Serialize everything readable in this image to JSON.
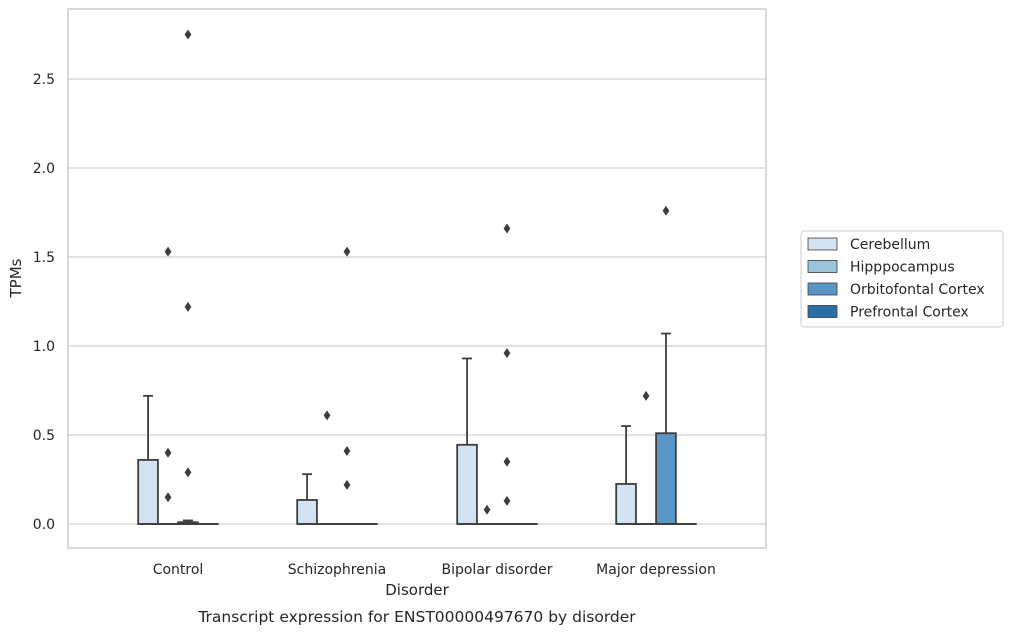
{
  "caption": "Transcript expression for ENST00000497670 by disorder",
  "chart_data": {
    "type": "box",
    "xlabel": "Disorder",
    "ylabel": "TPMs",
    "ylim": [
      -0.13,
      2.9
    ],
    "yticks": [
      0.0,
      0.5,
      1.0,
      1.5,
      2.0,
      2.5
    ],
    "ytick_labels": [
      "0.0",
      "0.5",
      "1.0",
      "1.5",
      "2.0",
      "2.5"
    ],
    "grid": "horizontal",
    "legend_position": "right",
    "categories": [
      "Control",
      "Schizophrenia",
      "Bipolar disorder",
      "Major depression"
    ],
    "series": [
      {
        "name": "Cerebellum",
        "color": "#d4e3f1",
        "boxes": [
          {
            "q1": 0.0,
            "median": 0.0,
            "q3": 0.36,
            "whisker_low": 0.0,
            "whisker_high": 0.72,
            "outliers": []
          },
          {
            "q1": 0.0,
            "median": 0.0,
            "q3": 0.135,
            "whisker_low": 0.0,
            "whisker_high": 0.28,
            "outliers": []
          },
          {
            "q1": 0.0,
            "median": 0.0,
            "q3": 0.445,
            "whisker_low": 0.0,
            "whisker_high": 0.93,
            "outliers": []
          },
          {
            "q1": 0.0,
            "median": 0.0,
            "q3": 0.225,
            "whisker_low": 0.0,
            "whisker_high": 0.55,
            "outliers": []
          }
        ]
      },
      {
        "name": "Hipppocampus",
        "color": "#9ac3dc",
        "boxes": [
          {
            "q1": 0.0,
            "median": 0.0,
            "q3": 0.0,
            "whisker_low": 0.0,
            "whisker_high": 0.0,
            "outliers": [
              0.15,
              0.4,
              1.53
            ]
          },
          {
            "q1": 0.0,
            "median": 0.0,
            "q3": 0.0,
            "whisker_low": 0.0,
            "whisker_high": 0.0,
            "outliers": [
              0.61
            ]
          },
          {
            "q1": 0.0,
            "median": 0.0,
            "q3": 0.0,
            "whisker_low": 0.0,
            "whisker_high": 0.0,
            "outliers": [
              0.08
            ]
          },
          {
            "q1": 0.0,
            "median": 0.0,
            "q3": 0.0,
            "whisker_low": 0.0,
            "whisker_high": 0.0,
            "outliers": [
              0.72
            ]
          }
        ]
      },
      {
        "name": "Orbitofontal Cortex",
        "color": "#5996c4",
        "boxes": [
          {
            "q1": 0.0,
            "median": 0.0,
            "q3": 0.01,
            "whisker_low": 0.0,
            "whisker_high": 0.02,
            "outliers": [
              0.29,
              1.22,
              2.75
            ]
          },
          {
            "q1": 0.0,
            "median": 0.0,
            "q3": 0.0,
            "whisker_low": 0.0,
            "whisker_high": 0.0,
            "outliers": [
              0.22,
              0.41,
              1.53
            ]
          },
          {
            "q1": 0.0,
            "median": 0.0,
            "q3": 0.0,
            "whisker_low": 0.0,
            "whisker_high": 0.0,
            "outliers": [
              0.13,
              0.35,
              0.96,
              1.66
            ]
          },
          {
            "q1": 0.0,
            "median": 0.0,
            "q3": 0.51,
            "whisker_low": 0.0,
            "whisker_high": 1.07,
            "outliers": [
              1.76
            ]
          }
        ]
      },
      {
        "name": "Prefrontal Cortex",
        "color": "#2b6ea8",
        "boxes": [
          {
            "q1": 0.0,
            "median": 0.0,
            "q3": 0.0,
            "whisker_low": 0.0,
            "whisker_high": 0.0,
            "outliers": []
          },
          {
            "q1": 0.0,
            "median": 0.0,
            "q3": 0.0,
            "whisker_low": 0.0,
            "whisker_high": 0.0,
            "outliers": []
          },
          {
            "q1": 0.0,
            "median": 0.0,
            "q3": 0.0,
            "whisker_low": 0.0,
            "whisker_high": 0.0,
            "outliers": []
          },
          {
            "q1": 0.0,
            "median": 0.0,
            "q3": 0.0,
            "whisker_low": 0.0,
            "whisker_high": 0.0,
            "outliers": []
          }
        ]
      }
    ]
  }
}
